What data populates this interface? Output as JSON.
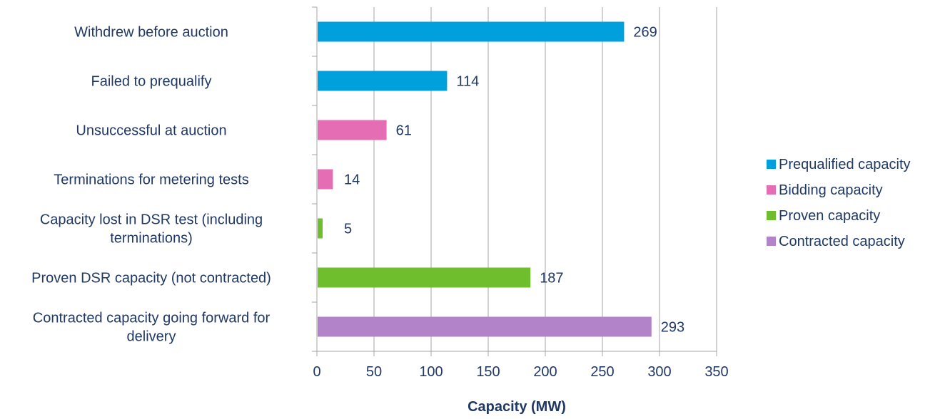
{
  "chart_data": {
    "type": "bar",
    "orientation": "horizontal",
    "title": "",
    "xlabel": "Capacity (MW)",
    "ylabel": "",
    "xlim": [
      0,
      350
    ],
    "xticks": [
      0,
      50,
      100,
      150,
      200,
      250,
      300,
      350
    ],
    "grid": true,
    "legend_position": "right",
    "categories": [
      {
        "label_lines": [
          "Withdrew before auction"
        ],
        "value": 269,
        "series": "Prequalified capacity"
      },
      {
        "label_lines": [
          "Failed to prequalify"
        ],
        "value": 114,
        "series": "Prequalified capacity"
      },
      {
        "label_lines": [
          "Unsuccessful at auction"
        ],
        "value": 61,
        "series": "Bidding capacity"
      },
      {
        "label_lines": [
          "Terminations for metering tests"
        ],
        "value": 14,
        "series": "Bidding capacity"
      },
      {
        "label_lines": [
          "Capacity lost in DSR test (including",
          "terminations)"
        ],
        "value": 5,
        "series": "Proven capacity"
      },
      {
        "label_lines": [
          "Proven DSR capacity (not contracted)"
        ],
        "value": 187,
        "series": "Proven capacity"
      },
      {
        "label_lines": [
          "Contracted capacity going forward for",
          "delivery"
        ],
        "value": 293,
        "series": "Contracted capacity"
      }
    ],
    "series": [
      {
        "name": "Prequalified capacity",
        "color": "#00a0dc"
      },
      {
        "name": "Bidding capacity",
        "color": "#e46db4"
      },
      {
        "name": "Proven capacity",
        "color": "#6ebe2d"
      },
      {
        "name": "Contracted capacity",
        "color": "#b283c8"
      }
    ]
  }
}
